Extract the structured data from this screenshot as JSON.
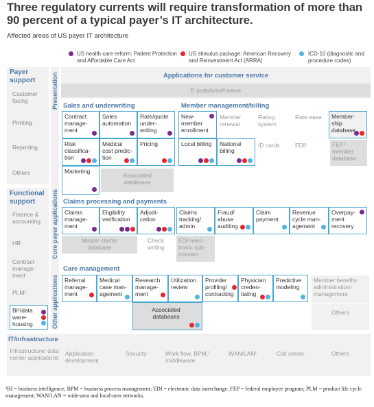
{
  "title": "Three regulatory currents will require transformation of more than 90 percent of a typical payer’s IT architecture.",
  "subtitle": "Affected areas of US payer IT architecture",
  "colors": {
    "purple": "#7a2a8c",
    "red": "#e8262b",
    "blue": "#4fb4e6",
    "accent": "#4a78a8",
    "border": "#4aa8cf"
  },
  "legend": [
    {
      "color": "purple",
      "label": "US health care reform: Patient Protection and Affordable Care Act"
    },
    {
      "color": "red",
      "label": "US stimulus package: American Recovery and Reinvestment Act (ARRA)"
    },
    {
      "color": "blue",
      "label": "ICD-10 (diagnostic and procedure codes)"
    }
  ],
  "sidebar": {
    "payer_head": "Payer support",
    "payer_items": [
      "Customer facing",
      "Printing",
      "Reporting",
      "Others"
    ],
    "functional_head": "Functional support",
    "functional_items": [
      "Finance & accounting",
      "HR",
      "Contract manage-ment",
      "PLM¹"
    ],
    "bi_label": "BI¹/data ware-housing"
  },
  "vlabels": {
    "presentation": "Presentation",
    "core": "Core payer applications",
    "other": "Other applications"
  },
  "presentation": {
    "title": "Applications for customer service",
    "eportal": "E-portals/self-serve"
  },
  "sales": {
    "title": "Sales and underwriting",
    "cells": [
      "Contract manage-ment",
      "Sales automation",
      "Rate/quote under-writing",
      "Risk classifica-tion",
      "Medical cost predic-tion",
      "Pricing",
      "Marketing",
      "Associated databases"
    ]
  },
  "member": {
    "title": "Member management/billing",
    "cells": [
      "New-member enrollment",
      "Member renewal",
      "Rating system",
      "Rate ease",
      "Member-ship database",
      "Local billing",
      "National billing",
      "ID cards",
      "EDI¹",
      "FEP¹ member database"
    ]
  },
  "claims": {
    "title": "Claims processing and payments",
    "cells": [
      "Claims manage-ment",
      "Eligibility verification",
      "Adjudi-cation",
      "Claims tracking/ admin",
      "Fraud/ abuse auditing",
      "Claim payment",
      "Revenue cycle man-agement",
      "Overpay-ment recovery",
      "Master claims database",
      "Check writing",
      "EDI¹/elec-tronic sub-mission"
    ]
  },
  "care": {
    "title": "Care management",
    "cells": [
      "Referral manage-ment",
      "Medical case man-agement",
      "Research manage-ment",
      "Utilization review",
      "Provider profiling/ contracting",
      "Physician creden-tialing",
      "Predictive modeling",
      "Associated databases"
    ],
    "right": [
      "Member benefits administration/ management",
      "Others"
    ]
  },
  "infra": {
    "title": "IT/infrastructure",
    "items": [
      "Infrastructure/ data center applications",
      "Application development",
      "Security",
      "Work flow, BPM,¹ middleware",
      "WAN/LAN¹",
      "Call center",
      "Others"
    ]
  },
  "footnote": "¹BI = business intelligence; BPM = business process management; EDI = electronic data interchange; FEP = federal employee program; PLM = product life cycle management; WAN/LAN = wide-area and local-area networks."
}
